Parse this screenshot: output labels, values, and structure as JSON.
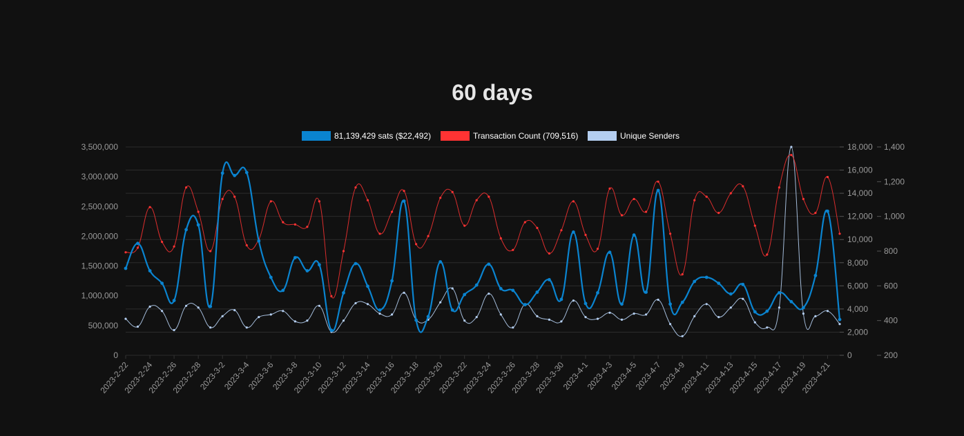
{
  "chart_data": {
    "type": "line",
    "title": "60 days",
    "colors": {
      "sats": "#0a84d0",
      "tx": "#ff3333",
      "senders": "#b4cef0"
    },
    "legend": [
      {
        "label": "81,139,429 sats ($22,492)",
        "color": "#0a84d0"
      },
      {
        "label": "Transaction Count (709,516)",
        "color": "#ff3333"
      },
      {
        "label": "Unique Senders",
        "color": "#b4cef0"
      }
    ],
    "x_tick_labels": [
      "2023-2-22",
      "2023-2-24",
      "2023-2-26",
      "2023-2-28",
      "2023-3-2",
      "2023-3-4",
      "2023-3-6",
      "2023-3-8",
      "2023-3-10",
      "2023-3-12",
      "2023-3-14",
      "2023-3-16",
      "2023-3-18",
      "2023-3-20",
      "2023-3-22",
      "2023-3-24",
      "2023-3-26",
      "2023-3-28",
      "2023-3-30",
      "2023-4-1",
      "2023-4-3",
      "2023-4-5",
      "2023-4-7",
      "2023-4-9",
      "2023-4-11",
      "2023-4-13",
      "2023-4-15",
      "2023-4-17",
      "2023-4-19",
      "2023-4-21"
    ],
    "x": [
      "2023-2-22",
      "2023-2-23",
      "2023-2-24",
      "2023-2-25",
      "2023-2-26",
      "2023-2-27",
      "2023-2-28",
      "2023-3-1",
      "2023-3-2",
      "2023-3-3",
      "2023-3-4",
      "2023-3-5",
      "2023-3-6",
      "2023-3-7",
      "2023-3-8",
      "2023-3-9",
      "2023-3-10",
      "2023-3-11",
      "2023-3-12",
      "2023-3-13",
      "2023-3-14",
      "2023-3-15",
      "2023-3-16",
      "2023-3-17",
      "2023-3-18",
      "2023-3-19",
      "2023-3-20",
      "2023-3-21",
      "2023-3-22",
      "2023-3-23",
      "2023-3-24",
      "2023-3-25",
      "2023-3-26",
      "2023-3-27",
      "2023-3-28",
      "2023-3-29",
      "2023-3-30",
      "2023-3-31",
      "2023-4-1",
      "2023-4-2",
      "2023-4-3",
      "2023-4-4",
      "2023-4-5",
      "2023-4-6",
      "2023-4-7",
      "2023-4-8",
      "2023-4-9",
      "2023-4-10",
      "2023-4-11",
      "2023-4-12",
      "2023-4-13",
      "2023-4-14",
      "2023-4-15",
      "2023-4-16",
      "2023-4-17",
      "2023-4-18",
      "2023-4-19",
      "2023-4-20",
      "2023-4-21",
      "2023-4-22"
    ],
    "axes": {
      "left": {
        "min": 0,
        "max": 3500000,
        "ticks": [
          0,
          500000,
          1000000,
          1500000,
          2000000,
          2500000,
          3000000,
          3500000
        ],
        "tick_labels": [
          "0",
          "500,000",
          "1,000,000",
          "1,500,000",
          "2,000,000",
          "2,500,000",
          "3,000,000",
          "3,500,000"
        ]
      },
      "middle": {
        "min": 0,
        "max": 18000,
        "ticks": [
          0,
          2000,
          4000,
          6000,
          8000,
          10000,
          12000,
          14000,
          16000,
          18000
        ],
        "tick_labels": [
          "0",
          "2,000",
          "4,000",
          "6,000",
          "8,000",
          "10,000",
          "12,000",
          "14,000",
          "16,000",
          "18,000"
        ]
      },
      "right": {
        "min": 200,
        "max": 1400,
        "ticks": [
          200,
          400,
          600,
          800,
          1000,
          1200,
          1400
        ],
        "tick_labels": [
          "200",
          "400",
          "600",
          "800",
          "1,000",
          "1,200",
          "1,400"
        ]
      }
    },
    "grid": true,
    "legend_position": "top",
    "series": [
      {
        "name": "81,139,429 sats ($22,492)",
        "axis": "left",
        "color": "#0a84d0",
        "values": [
          1460000,
          1880000,
          1420000,
          1210000,
          920000,
          2110000,
          2190000,
          820000,
          3060000,
          3020000,
          3070000,
          1920000,
          1310000,
          1090000,
          1640000,
          1420000,
          1520000,
          420000,
          1050000,
          1540000,
          1160000,
          760000,
          1250000,
          2590000,
          590000,
          650000,
          1570000,
          760000,
          1020000,
          1180000,
          1530000,
          1120000,
          1090000,
          850000,
          1060000,
          1270000,
          940000,
          2070000,
          870000,
          1050000,
          1730000,
          860000,
          2020000,
          1060000,
          2770000,
          860000,
          890000,
          1240000,
          1310000,
          1210000,
          1030000,
          1190000,
          730000,
          740000,
          1050000,
          900000,
          800000,
          1340000,
          2420000,
          600000
        ]
      },
      {
        "name": "Transaction Count (709,516)",
        "axis": "middle",
        "color": "#ff3333",
        "values": [
          8900,
          9300,
          12800,
          9800,
          9400,
          14500,
          12400,
          9000,
          13500,
          13700,
          9500,
          10000,
          13300,
          11500,
          11300,
          11100,
          13300,
          5100,
          9000,
          14500,
          13400,
          10500,
          12400,
          14200,
          9600,
          10300,
          13600,
          14100,
          11200,
          13400,
          13700,
          10100,
          9100,
          11500,
          11000,
          8800,
          10800,
          13300,
          10400,
          9200,
          14400,
          12100,
          13500,
          12400,
          15000,
          10500,
          7000,
          13400,
          13700,
          12300,
          14000,
          14600,
          11200,
          8700,
          14500,
          17300,
          13500,
          12300,
          15400,
          10500
        ]
      },
      {
        "name": "Unique Senders",
        "axis": "right",
        "color": "#b4cef0",
        "values": [
          410,
          365,
          480,
          455,
          345,
          485,
          475,
          360,
          425,
          460,
          360,
          420,
          435,
          455,
          395,
          400,
          485,
          335,
          400,
          500,
          495,
          440,
          435,
          560,
          405,
          405,
          505,
          585,
          400,
          420,
          555,
          435,
          360,
          495,
          425,
          405,
          395,
          515,
          420,
          410,
          445,
          405,
          440,
          435,
          520,
          380,
          310,
          425,
          495,
          420,
          475,
          525,
          390,
          360,
          475,
          1400,
          440,
          425,
          455,
          380
        ]
      }
    ]
  }
}
